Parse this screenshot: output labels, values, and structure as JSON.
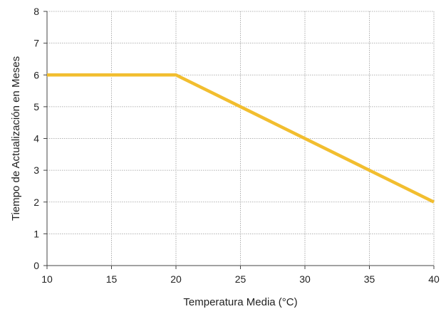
{
  "chart_data": {
    "type": "line",
    "title": "",
    "xlabel": "Temperatura Media (°C)",
    "ylabel": "Tiempo de Actualización en Meses",
    "xlim": [
      10,
      40
    ],
    "ylim": [
      0,
      8
    ],
    "xticks": [
      10,
      15,
      20,
      25,
      30,
      35,
      40
    ],
    "yticks": [
      0,
      1,
      2,
      3,
      4,
      5,
      6,
      7,
      8
    ],
    "grid": true,
    "series": [
      {
        "color": "#F2BE2F",
        "x": [
          10,
          20,
          40
        ],
        "y": [
          6,
          6,
          2
        ]
      }
    ]
  }
}
